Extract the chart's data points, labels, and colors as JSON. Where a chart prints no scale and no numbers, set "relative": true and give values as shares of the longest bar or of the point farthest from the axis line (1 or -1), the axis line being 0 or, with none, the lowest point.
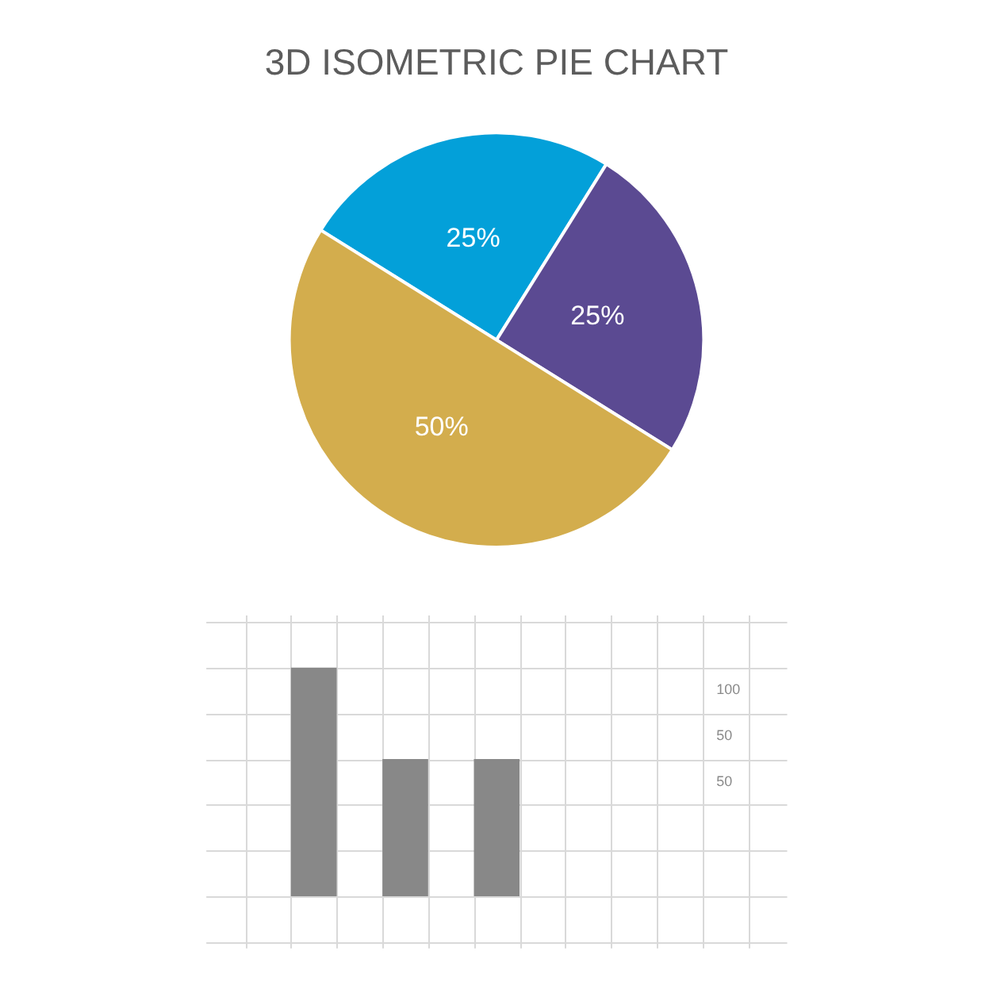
{
  "chart_data": [
    {
      "type": "pie",
      "title": "3D ISOMETRIC PIE CHART",
      "categories": [
        null,
        null,
        null
      ],
      "values": [
        25,
        25,
        50
      ],
      "colors": [
        "#03a0d9",
        "#5b4a92",
        "#d3ad4d"
      ],
      "value_labels": [
        "25%",
        "25%",
        "50%"
      ]
    },
    {
      "type": "bar",
      "categories": [
        null,
        null,
        null
      ],
      "values": [
        1,
        0.6,
        0.6
      ],
      "color": "#888888",
      "relative": true,
      "grid": true,
      "tick_labels": false,
      "annotations": [
        "100",
        "50",
        "50"
      ]
    }
  ]
}
